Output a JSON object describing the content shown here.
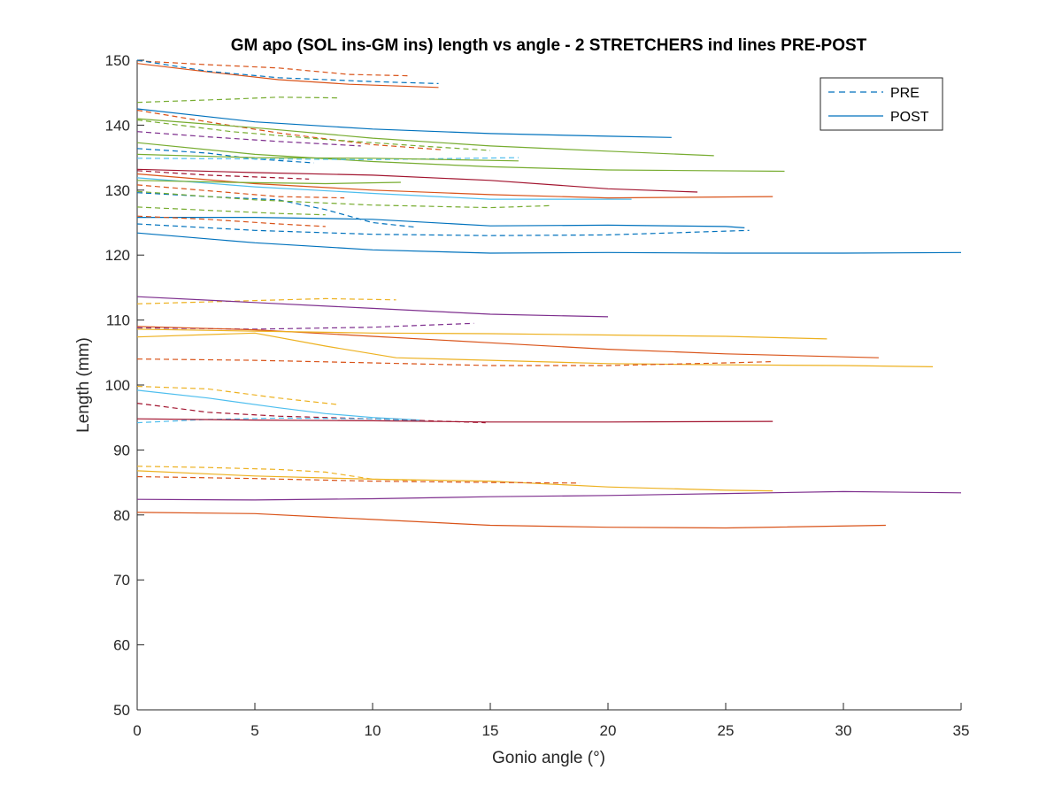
{
  "chart_data": {
    "type": "line",
    "title": "GM apo (SOL ins-GM ins) length vs angle - 2 STRETCHERS ind lines PRE-POST",
    "xlabel": "Gonio angle (°)",
    "ylabel": "Length (mm)",
    "xlim": [
      0,
      35
    ],
    "ylim": [
      50,
      150
    ],
    "xticks": [
      0,
      5,
      10,
      15,
      20,
      25,
      30,
      35
    ],
    "yticks": [
      50,
      60,
      70,
      80,
      90,
      100,
      110,
      120,
      130,
      140,
      150
    ],
    "grid": false,
    "legend": {
      "position": "top-right",
      "entries": [
        {
          "label": "PRE",
          "style": "dashed",
          "color": "#0072BD"
        },
        {
          "label": "POST",
          "style": "solid",
          "color": "#0072BD"
        }
      ]
    },
    "series": [
      {
        "condition": "PRE",
        "color": "#D95319",
        "points": [
          [
            0,
            149.9
          ],
          [
            3,
            149.3
          ],
          [
            6,
            148.8
          ],
          [
            9,
            147.8
          ],
          [
            11.5,
            147.6
          ]
        ]
      },
      {
        "condition": "POST",
        "color": "#D95319",
        "points": [
          [
            0,
            149.5
          ],
          [
            3,
            148.2
          ],
          [
            6,
            147
          ],
          [
            9,
            146.3
          ],
          [
            12.8,
            145.8
          ]
        ]
      },
      {
        "condition": "PRE",
        "color": "#0072BD",
        "points": [
          [
            0,
            150
          ],
          [
            3,
            148.3
          ],
          [
            6,
            147.3
          ],
          [
            10,
            146.7
          ],
          [
            12.8,
            146.4
          ]
        ]
      },
      {
        "condition": "PRE",
        "color": "#77AC30",
        "points": [
          [
            0,
            143.5
          ],
          [
            4,
            144
          ],
          [
            6,
            144.3
          ],
          [
            8.5,
            144.2
          ]
        ]
      },
      {
        "condition": "POST",
        "color": "#0072BD",
        "points": [
          [
            0,
            142.5
          ],
          [
            5,
            140.5
          ],
          [
            10,
            139.4
          ],
          [
            15,
            138.7
          ],
          [
            20,
            138.3
          ],
          [
            22.7,
            138.1
          ]
        ]
      },
      {
        "condition": "PRE",
        "color": "#D95319",
        "points": [
          [
            0,
            142.3
          ],
          [
            3,
            140.5
          ],
          [
            6,
            138.8
          ],
          [
            10,
            137
          ],
          [
            13,
            136.2
          ]
        ]
      },
      {
        "condition": "POST",
        "color": "#77AC30",
        "points": [
          [
            0,
            141
          ],
          [
            5,
            139.6
          ],
          [
            10,
            138
          ],
          [
            15,
            136.8
          ],
          [
            20,
            136
          ],
          [
            24.5,
            135.3
          ]
        ]
      },
      {
        "condition": "PRE",
        "color": "#77AC30",
        "points": [
          [
            0,
            140.8
          ],
          [
            4,
            139
          ],
          [
            8,
            137.8
          ],
          [
            12,
            136.8
          ],
          [
            15,
            136.1
          ]
        ]
      },
      {
        "condition": "PRE",
        "color": "#7E2F8E",
        "points": [
          [
            0,
            139
          ],
          [
            3,
            138.2
          ],
          [
            6,
            137.5
          ],
          [
            9.5,
            136.8
          ]
        ]
      },
      {
        "condition": "POST",
        "color": "#77AC30",
        "points": [
          [
            0,
            137.3
          ],
          [
            5,
            135.5
          ],
          [
            10,
            134.4
          ],
          [
            15,
            133.6
          ],
          [
            20,
            133.1
          ],
          [
            27.5,
            132.9
          ]
        ]
      },
      {
        "condition": "PRE",
        "color": "#0072BD",
        "points": [
          [
            0,
            136.4
          ],
          [
            3,
            135.7
          ],
          [
            5,
            134.8
          ],
          [
            7.5,
            134.2
          ]
        ]
      },
      {
        "condition": "PRE",
        "color": "#4DBEEE",
        "points": [
          [
            0,
            134.9
          ],
          [
            5,
            134.8
          ],
          [
            10,
            134.7
          ],
          [
            16.2,
            135
          ]
        ]
      },
      {
        "condition": "POST",
        "color": "#77AC30",
        "points": [
          [
            0,
            135.5
          ],
          [
            5,
            135
          ],
          [
            10,
            134.9
          ],
          [
            16.2,
            134.5
          ]
        ]
      },
      {
        "condition": "POST",
        "color": "#A2142F",
        "points": [
          [
            0,
            133.2
          ],
          [
            5,
            132.7
          ],
          [
            10,
            132.3
          ],
          [
            15,
            131.5
          ],
          [
            20,
            130.2
          ],
          [
            23.8,
            129.7
          ]
        ]
      },
      {
        "condition": "PRE",
        "color": "#A2142F",
        "points": [
          [
            0,
            133
          ],
          [
            3,
            132.3
          ],
          [
            6,
            131.9
          ],
          [
            7.3,
            131.7
          ]
        ]
      },
      {
        "condition": "POST",
        "color": "#D95319",
        "points": [
          [
            0,
            132.5
          ],
          [
            5,
            131
          ],
          [
            10,
            130
          ],
          [
            15,
            129.3
          ],
          [
            20,
            128.8
          ],
          [
            27,
            129
          ]
        ]
      },
      {
        "condition": "POST",
        "color": "#4DBEEE",
        "points": [
          [
            0,
            131.9
          ],
          [
            5,
            130.5
          ],
          [
            10,
            129.5
          ],
          [
            15,
            128.6
          ],
          [
            21,
            128.6
          ]
        ]
      },
      {
        "condition": "POST",
        "color": "#77AC30",
        "points": [
          [
            0,
            131.5
          ],
          [
            4,
            131.2
          ],
          [
            8,
            131
          ],
          [
            11.2,
            131.2
          ]
        ]
      },
      {
        "condition": "PRE",
        "color": "#D95319",
        "points": [
          [
            0,
            130.8
          ],
          [
            3,
            129.9
          ],
          [
            6,
            129
          ],
          [
            8.8,
            128.8
          ]
        ]
      },
      {
        "condition": "PRE",
        "color": "#0072BD",
        "points": [
          [
            0,
            129.6
          ],
          [
            3,
            129
          ],
          [
            6,
            128.5
          ],
          [
            8,
            127
          ],
          [
            10,
            125
          ],
          [
            11.8,
            124.3
          ]
        ]
      },
      {
        "condition": "PRE",
        "color": "#77AC30",
        "points": [
          [
            0,
            129.8
          ],
          [
            5,
            128.5
          ],
          [
            10,
            127.7
          ],
          [
            15,
            127.3
          ],
          [
            17.5,
            127.6
          ]
        ]
      },
      {
        "condition": "PRE",
        "color": "#77AC30",
        "points": [
          [
            0,
            127.4
          ],
          [
            3,
            126.9
          ],
          [
            6,
            126.4
          ],
          [
            8,
            126.2
          ]
        ]
      },
      {
        "condition": "POST",
        "color": "#0072BD",
        "points": [
          [
            0,
            125.8
          ],
          [
            5,
            125.8
          ],
          [
            10,
            125.5
          ],
          [
            15,
            124.5
          ],
          [
            20,
            124.6
          ],
          [
            25,
            124.4
          ],
          [
            25.8,
            124.2
          ]
        ]
      },
      {
        "condition": "PRE",
        "color": "#D95319",
        "points": [
          [
            0,
            126
          ],
          [
            3,
            125.5
          ],
          [
            6,
            124.8
          ],
          [
            8,
            124.4
          ]
        ]
      },
      {
        "condition": "PRE",
        "color": "#0072BD",
        "points": [
          [
            0,
            124.8
          ],
          [
            5,
            123.8
          ],
          [
            10,
            123.2
          ],
          [
            15,
            123
          ],
          [
            20,
            123.1
          ],
          [
            26,
            123.8
          ]
        ]
      },
      {
        "condition": "POST",
        "color": "#0072BD",
        "points": [
          [
            0,
            123.4
          ],
          [
            5,
            121.9
          ],
          [
            10,
            120.8
          ],
          [
            15,
            120.3
          ],
          [
            20,
            120.4
          ],
          [
            25,
            120.3
          ],
          [
            30,
            120.3
          ],
          [
            35,
            120.4
          ]
        ]
      },
      {
        "condition": "PRE",
        "color": "#EDB120",
        "points": [
          [
            0,
            112.5
          ],
          [
            5,
            113
          ],
          [
            8,
            113.3
          ],
          [
            11,
            113.1
          ]
        ]
      },
      {
        "condition": "POST",
        "color": "#7E2F8E",
        "points": [
          [
            0,
            113.6
          ],
          [
            5,
            112.7
          ],
          [
            10,
            111.8
          ],
          [
            15,
            110.9
          ],
          [
            20,
            110.5
          ]
        ]
      },
      {
        "condition": "PRE",
        "color": "#7E2F8E",
        "points": [
          [
            0,
            108.8
          ],
          [
            5,
            108.6
          ],
          [
            10,
            108.9
          ],
          [
            14.3,
            109.5
          ]
        ]
      },
      {
        "condition": "POST",
        "color": "#D95319",
        "points": [
          [
            0,
            109
          ],
          [
            5,
            108.5
          ],
          [
            10,
            107.5
          ],
          [
            15,
            106.5
          ],
          [
            20,
            105.5
          ],
          [
            25,
            104.8
          ],
          [
            31.5,
            104.2
          ]
        ]
      },
      {
        "condition": "POST",
        "color": "#EDB120",
        "points": [
          [
            0,
            108.6
          ],
          [
            5,
            108.3
          ],
          [
            10,
            108
          ],
          [
            15,
            107.9
          ],
          [
            20,
            107.7
          ],
          [
            25,
            107.5
          ],
          [
            29.3,
            107.1
          ]
        ]
      },
      {
        "condition": "POST",
        "color": "#EDB120",
        "points": [
          [
            0,
            107.4
          ],
          [
            5,
            108
          ],
          [
            8,
            106
          ],
          [
            11,
            104.2
          ],
          [
            15,
            103.8
          ],
          [
            20,
            103.3
          ],
          [
            25,
            103.1
          ],
          [
            30,
            103
          ],
          [
            33.8,
            102.8
          ]
        ]
      },
      {
        "condition": "PRE",
        "color": "#D95319",
        "points": [
          [
            0,
            104
          ],
          [
            5,
            103.8
          ],
          [
            10,
            103.4
          ],
          [
            15,
            103
          ],
          [
            20,
            103
          ],
          [
            25,
            103.4
          ],
          [
            27,
            103.6
          ]
        ]
      },
      {
        "condition": "PRE",
        "color": "#EDB120",
        "points": [
          [
            0,
            99.8
          ],
          [
            3,
            99.4
          ],
          [
            6,
            98
          ],
          [
            8.5,
            97
          ]
        ]
      },
      {
        "condition": "POST",
        "color": "#4DBEEE",
        "points": [
          [
            0,
            99.2
          ],
          [
            3,
            98
          ],
          [
            6,
            96.5
          ],
          [
            8,
            95.6
          ],
          [
            10,
            95
          ],
          [
            12,
            94.6
          ]
        ]
      },
      {
        "condition": "PRE",
        "color": "#A2142F",
        "points": [
          [
            0,
            97.2
          ],
          [
            3,
            95.8
          ],
          [
            6,
            95.2
          ],
          [
            10,
            94.8
          ],
          [
            14.8,
            94.2
          ]
        ]
      },
      {
        "condition": "PRE",
        "color": "#4DBEEE",
        "points": [
          [
            0,
            94.2
          ],
          [
            3,
            94.7
          ],
          [
            6,
            94.9
          ],
          [
            10,
            94.8
          ],
          [
            12.3,
            94.4
          ]
        ]
      },
      {
        "condition": "POST",
        "color": "#A2142F",
        "points": [
          [
            0,
            94.8
          ],
          [
            5,
            94.6
          ],
          [
            10,
            94.5
          ],
          [
            15,
            94.3
          ],
          [
            20,
            94.3
          ],
          [
            27,
            94.4
          ]
        ]
      },
      {
        "condition": "PRE",
        "color": "#EDB120",
        "points": [
          [
            0,
            87.5
          ],
          [
            3,
            87.3
          ],
          [
            6,
            87
          ],
          [
            8,
            86.6
          ],
          [
            10,
            85.5
          ],
          [
            12,
            85.3
          ]
        ]
      },
      {
        "condition": "POST",
        "color": "#EDB120",
        "points": [
          [
            0,
            86.8
          ],
          [
            5,
            86
          ],
          [
            10,
            85.5
          ],
          [
            15,
            85.2
          ],
          [
            20,
            84.3
          ],
          [
            25,
            83.8
          ],
          [
            27,
            83.7
          ]
        ]
      },
      {
        "condition": "PRE",
        "color": "#D95319",
        "points": [
          [
            0,
            85.9
          ],
          [
            5,
            85.6
          ],
          [
            10,
            85.2
          ],
          [
            15,
            85
          ],
          [
            18.8,
            84.9
          ]
        ]
      },
      {
        "condition": "POST",
        "color": "#7E2F8E",
        "points": [
          [
            0,
            82.4
          ],
          [
            5,
            82.3
          ],
          [
            10,
            82.5
          ],
          [
            15,
            82.8
          ],
          [
            20,
            83
          ],
          [
            25,
            83.3
          ],
          [
            30,
            83.6
          ],
          [
            35,
            83.4
          ]
        ]
      },
      {
        "condition": "POST",
        "color": "#D95319",
        "points": [
          [
            0,
            80.4
          ],
          [
            5,
            80.2
          ],
          [
            10,
            79.3
          ],
          [
            15,
            78.4
          ],
          [
            20,
            78.1
          ],
          [
            25,
            78
          ],
          [
            31.8,
            78.4
          ]
        ]
      }
    ]
  }
}
